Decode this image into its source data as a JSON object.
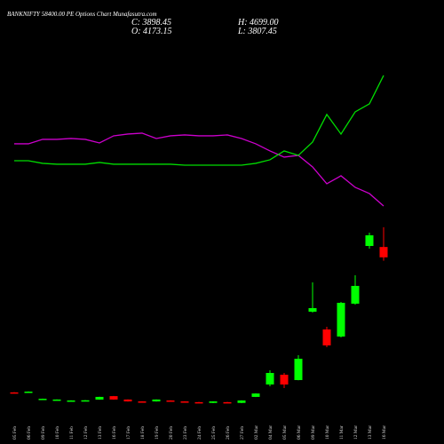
{
  "chart_data": {
    "type": "candlestick",
    "title": "BANKNIFTY 58400.00 PE Options Chart Munafasutra.com",
    "info": [
      "C: 3898.45",
      "O: 4173.15",
      "H: 4699.00",
      "L: 3807.45"
    ],
    "categories": [
      "05 Feb",
      "06 Feb",
      "09 Feb",
      "10 Feb",
      "11 Feb",
      "12 Feb",
      "13 Feb",
      "16 Feb",
      "17 Feb",
      "18 Feb",
      "19 Feb",
      "20 Feb",
      "23 Feb",
      "24 Feb",
      "25 Feb",
      "26 Feb",
      "27 Feb",
      "02 Mar",
      "04 Mar",
      "05 Mar",
      "06 Mar",
      "09 Mar",
      "10 Mar",
      "11 Mar",
      "12 Mar",
      "13 Mar",
      "16 Mar"
    ],
    "open": [
      310,
      300,
      140,
      120,
      95,
      100,
      118,
      210,
      120,
      70,
      70,
      95,
      70,
      50,
      30,
      50,
      30,
      190,
      520,
      779,
      637,
      2454,
      1982,
      1794,
      2667,
      4200,
      4173.15
    ],
    "high": [
      315,
      335,
      145,
      125,
      100,
      105,
      195,
      215,
      125,
      75,
      125,
      100,
      75,
      55,
      75,
      55,
      100,
      285,
      897,
      826,
      1298,
      3233,
      2053,
      2714,
      3422,
      4555,
      4699
    ],
    "low": [
      295,
      295,
      135,
      115,
      90,
      95,
      113,
      115,
      65,
      55,
      65,
      65,
      45,
      40,
      25,
      25,
      25,
      185,
      472,
      425,
      630,
      2431,
      1510,
      1770,
      2640,
      4130,
      3807.45
    ],
    "close": [
      300,
      330,
      140,
      120,
      95,
      100,
      190,
      120,
      70,
      60,
      120,
      70,
      50,
      45,
      70,
      30,
      95,
      280,
      826,
      519,
      1204,
      2549,
      1558,
      2690,
      3139,
      4484,
      3898.45
    ],
    "up_color": "#00ff00",
    "down_color": "#ff0000",
    "lines": [
      {
        "color": "#cc00cc",
        "values": [
          6915,
          6915,
          7033,
          7033,
          7056,
          7033,
          6938,
          7127,
          7174,
          7198,
          7056,
          7127,
          7151,
          7127,
          7127,
          7151,
          7056,
          6915,
          6726,
          6561,
          6608,
          6301,
          5853,
          6065,
          5758,
          5593,
          5263
        ]
      },
      {
        "color": "#00dd00",
        "values": [
          6466,
          6466,
          6396,
          6372,
          6372,
          6372,
          6419,
          6372,
          6372,
          6372,
          6372,
          6372,
          6348,
          6348,
          6348,
          6348,
          6348,
          6396,
          6490,
          6726,
          6608,
          6962,
          7694,
          7174,
          7764,
          7977,
          8732
        ]
      }
    ],
    "ylim": [
      0,
      10500
    ]
  }
}
